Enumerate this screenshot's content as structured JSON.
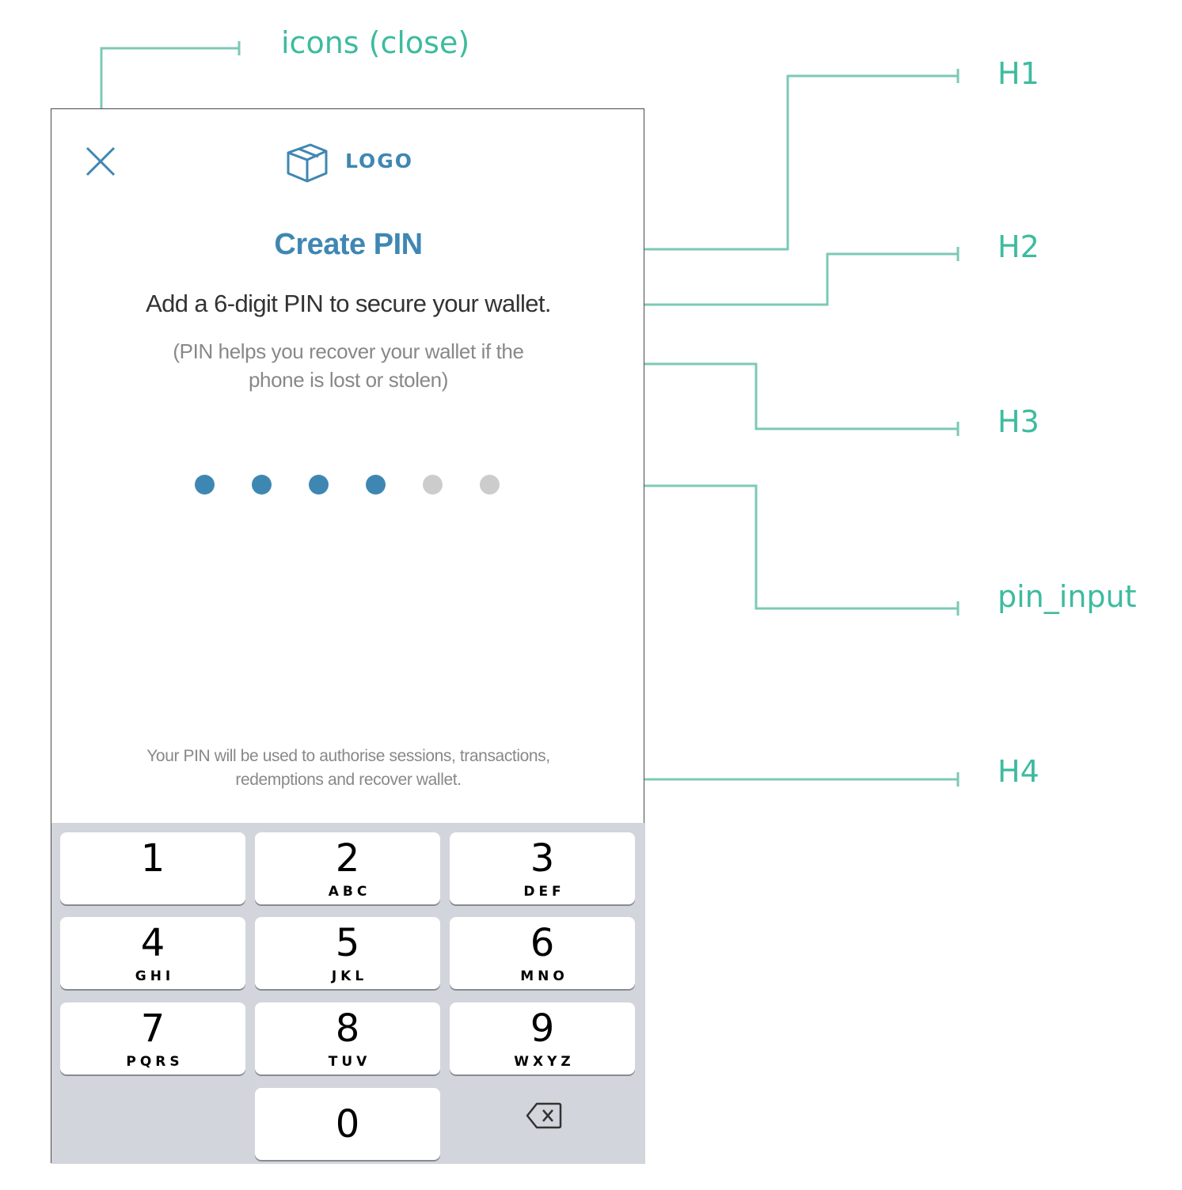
{
  "annotations": {
    "close_label": "icons (close)",
    "h1_label": "H1",
    "h2_label": "H2",
    "h3_label": "H3",
    "pin_input_label": "pin_input",
    "h4_label": "H4",
    "line_color": "#7cc9b6",
    "label_color": "#3dbb9f"
  },
  "header": {
    "close_icon": "close-icon",
    "logo_icon": "cube-icon",
    "logo_text": "LOGO"
  },
  "content": {
    "title": "Create PIN",
    "subtitle": "Add a 6-digit PIN to secure your wallet.",
    "help_line1": "(PIN helps you recover your wallet if the",
    "help_line2": "phone is lost or stolen)",
    "footnote_line1": "Your PIN will be used to authorise sessions, transactions,",
    "footnote_line2": "redemptions and recover wallet."
  },
  "pin": {
    "length": 6,
    "filled": 4,
    "filled_color": "#3f87b3",
    "empty_color": "#cccccc"
  },
  "keypad": {
    "keys": [
      {
        "digit": "1",
        "letters": ""
      },
      {
        "digit": "2",
        "letters": "ABC"
      },
      {
        "digit": "3",
        "letters": "DEF"
      },
      {
        "digit": "4",
        "letters": "GHI"
      },
      {
        "digit": "5",
        "letters": "JKL"
      },
      {
        "digit": "6",
        "letters": "MNO"
      },
      {
        "digit": "7",
        "letters": "PQRS"
      },
      {
        "digit": "8",
        "letters": "TUV"
      },
      {
        "digit": "9",
        "letters": "WXYZ"
      }
    ],
    "zero": {
      "digit": "0"
    },
    "backspace_icon": "backspace-icon"
  }
}
